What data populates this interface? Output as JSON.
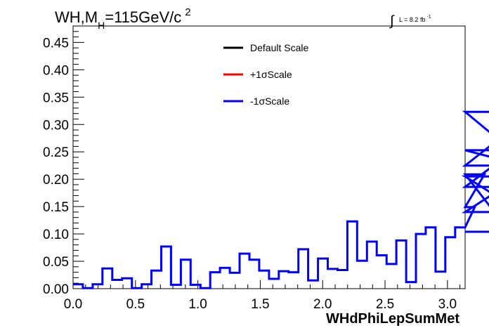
{
  "chart_data": {
    "type": "line",
    "title_main": "WH,M",
    "title_sub": "H",
    "title_rest": "=115GeV/c",
    "title_sup": "2",
    "lumi_label": "L = 8.2 fb",
    "lumi_sup": "-1",
    "xlabel": "WHdPhiLepSumMet",
    "ylabel": "",
    "xlim": [
      0,
      3.1416
    ],
    "ylim": [
      0,
      0.48
    ],
    "x_ticks": [
      "0.0",
      "0.5",
      "1.0",
      "1.5",
      "2.0",
      "2.5",
      "3.0"
    ],
    "x_tick_values": [
      0.0,
      0.5,
      1.0,
      1.5,
      2.0,
      2.5,
      3.0
    ],
    "y_ticks": [
      "0.00",
      "0.05",
      "0.10",
      "0.15",
      "0.20",
      "0.25",
      "0.30",
      "0.35",
      "0.40",
      "0.45"
    ],
    "y_tick_values": [
      0.0,
      0.05,
      0.1,
      0.15,
      0.2,
      0.25,
      0.3,
      0.35,
      0.4,
      0.45
    ],
    "bin_width": 0.0785,
    "legend": {
      "placement": "top-center",
      "entries": [
        {
          "name": "Default Scale",
          "color": "#000000"
        },
        {
          "name": "+1σScale",
          "color": "#ff0000"
        },
        {
          "name": "-1σScale",
          "color": "#0000ff"
        }
      ]
    },
    "series": [
      {
        "name": "-1σScale",
        "color": "#0000ff",
        "values": [
          0.008,
          0.001,
          0.008,
          0.037,
          0.016,
          0.019,
          0.001,
          0.008,
          0.033,
          0.077,
          0.007,
          0.053,
          0.007,
          0.001,
          0.03,
          0.038,
          0.029,
          0.064,
          0.053,
          0.033,
          0.018,
          0.032,
          0.03,
          0.072,
          0.015,
          0.055,
          0.036,
          0.034,
          0.123,
          0.051,
          0.086,
          0.061,
          0.045,
          0.088,
          0.012,
          0.1,
          0.112,
          0.031,
          0.094,
          0.112,
          0.112,
          0.149,
          0.209,
          0.14,
          0.186,
          0.253,
          0.225,
          0.323,
          0.205,
          0.104
        ]
      }
    ]
  }
}
